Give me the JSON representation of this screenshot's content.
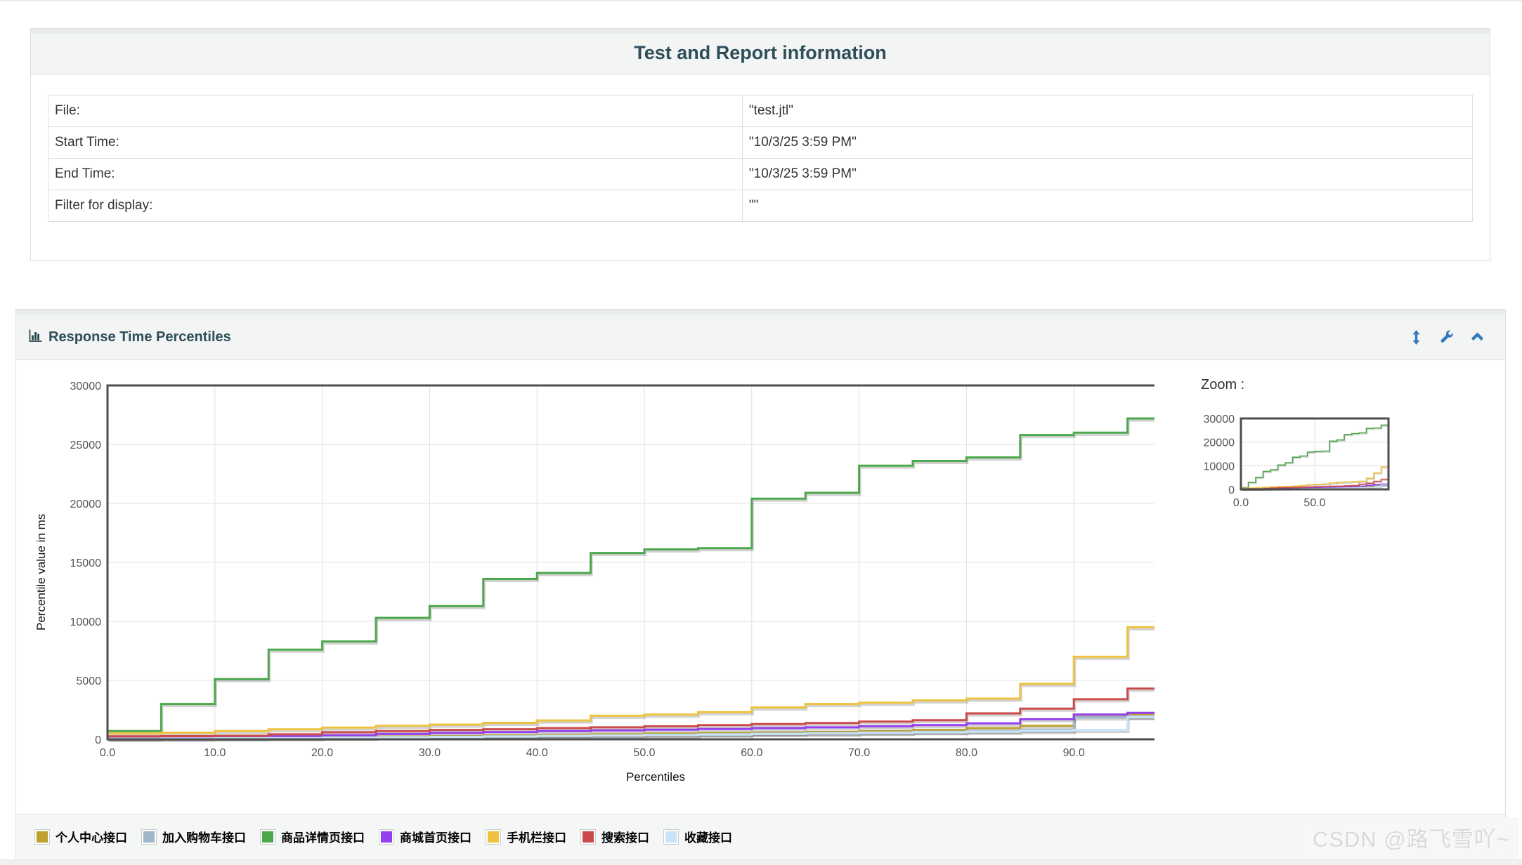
{
  "page": {
    "watermark": "CSDN @路飞雪吖~"
  },
  "info_panel": {
    "title": "Test and Report information",
    "rows": [
      {
        "label": "File:",
        "value": "\"test.jtl\""
      },
      {
        "label": "Start Time:",
        "value": "\"10/3/25 3:59 PM\""
      },
      {
        "label": "End Time:",
        "value": "\"10/3/25 3:59 PM\""
      },
      {
        "label": "Filter for display:",
        "value": "\"\""
      }
    ]
  },
  "graph_panel": {
    "title": "Response Time Percentiles",
    "icons": [
      "bar-chart-icon",
      "resize-vertical-icon",
      "wrench-icon",
      "collapse-icon"
    ],
    "icon_color": "#3379bd",
    "title_color": "#2e4e5a",
    "zoom_label": "Zoom :"
  },
  "chart_data": {
    "type": "line",
    "step": true,
    "title": "Response Time Percentiles",
    "xlabel": "Percentiles",
    "ylabel": "Percentile value in ms",
    "xlim": [
      0,
      100
    ],
    "ylim": [
      0,
      30000
    ],
    "xticks": [
      0,
      10,
      20,
      30,
      40,
      50,
      60,
      70,
      80,
      90
    ],
    "yticks": [
      0,
      5000,
      10000,
      15000,
      20000,
      25000,
      30000
    ],
    "grid": true,
    "legend_position": "bottom",
    "x": [
      0,
      5,
      10,
      15,
      20,
      25,
      30,
      35,
      40,
      45,
      50,
      55,
      60,
      65,
      70,
      75,
      80,
      85,
      90,
      95,
      100
    ],
    "series": [
      {
        "name": "个人中心接口",
        "color": "#BDA12F",
        "values": [
          100,
          110,
          130,
          160,
          200,
          240,
          280,
          330,
          380,
          430,
          480,
          530,
          580,
          630,
          700,
          800,
          950,
          1150,
          2100,
          2150,
          2150
        ]
      },
      {
        "name": "加入购物车接口",
        "color": "#9FB7CA",
        "values": [
          80,
          90,
          100,
          120,
          150,
          180,
          220,
          260,
          300,
          340,
          380,
          430,
          480,
          530,
          580,
          640,
          700,
          800,
          1850,
          1900,
          1900
        ]
      },
      {
        "name": "商品详情页接口",
        "color": "#4DA74D",
        "values": [
          700,
          3000,
          5100,
          7600,
          8300,
          10300,
          11300,
          13600,
          14100,
          15800,
          16100,
          16200,
          20400,
          20900,
          23200,
          23600,
          23900,
          25800,
          26000,
          27200,
          27200
        ]
      },
      {
        "name": "商城首页接口",
        "color": "#9440ED",
        "values": [
          150,
          170,
          200,
          260,
          350,
          450,
          550,
          620,
          700,
          760,
          820,
          880,
          950,
          1020,
          1100,
          1200,
          1350,
          1700,
          2100,
          2250,
          2250
        ]
      },
      {
        "name": "手机栏接口",
        "color": "#EDC240",
        "values": [
          500,
          560,
          700,
          850,
          1000,
          1150,
          1250,
          1400,
          1600,
          2000,
          2100,
          2300,
          2700,
          3000,
          3100,
          3300,
          3450,
          4700,
          7000,
          9500,
          9500
        ]
      },
      {
        "name": "搜索接口",
        "color": "#CB4B4B",
        "values": [
          250,
          270,
          300,
          420,
          600,
          700,
          800,
          860,
          950,
          1020,
          1100,
          1200,
          1300,
          1380,
          1500,
          1620,
          2200,
          2600,
          3400,
          4300,
          4300
        ]
      },
      {
        "name": "收藏接口",
        "color": "#C8E4F9",
        "values": [
          60,
          70,
          90,
          110,
          140,
          170,
          200,
          240,
          280,
          320,
          360,
          400,
          450,
          500,
          550,
          600,
          650,
          720,
          800,
          1900,
          1900
        ]
      }
    ],
    "overview": {
      "label": "Zoom :",
      "xlim": [
        0,
        100
      ],
      "ylim": [
        0,
        30000
      ],
      "xticks": [
        0,
        50
      ],
      "yticks": [
        0,
        10000,
        20000,
        30000
      ]
    }
  }
}
